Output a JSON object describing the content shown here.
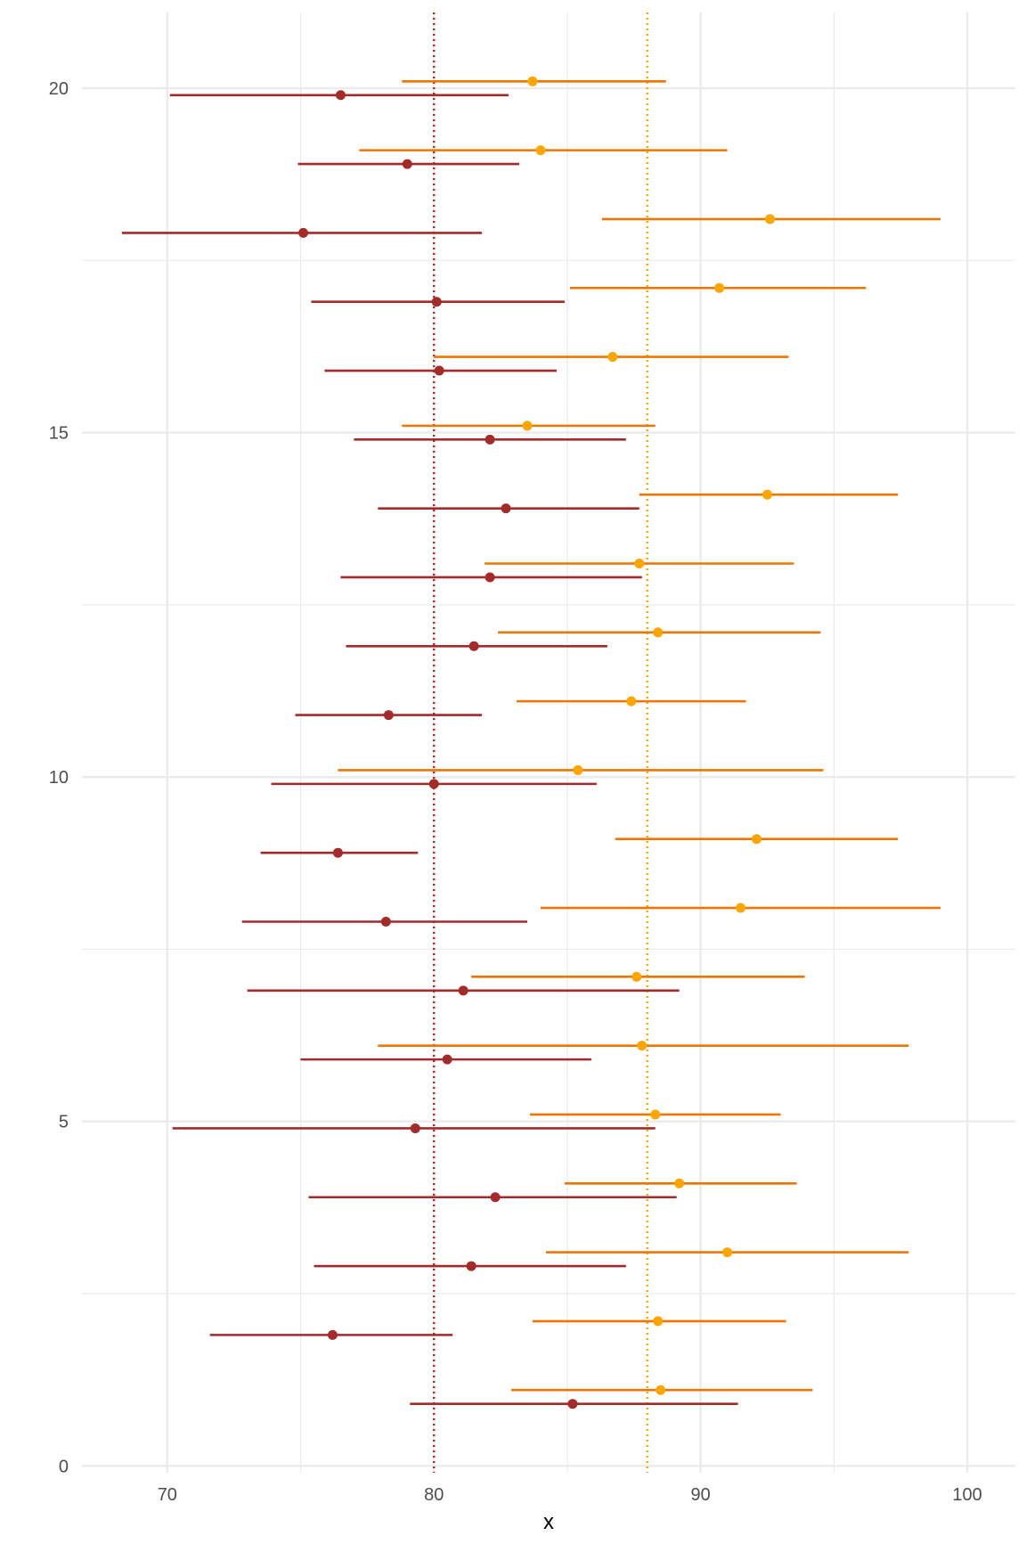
{
  "chart_data": {
    "type": "scatter",
    "title": "",
    "xlabel": "x",
    "ylabel": "",
    "xlim": [
      66.8,
      101.8
    ],
    "ylim": [
      -0.1,
      21.1
    ],
    "x_ticks": [
      70,
      80,
      90,
      100
    ],
    "x_tick_labels": [
      "70",
      "80",
      "90",
      "100"
    ],
    "y_ticks": [
      0,
      5,
      10,
      15,
      20
    ],
    "y_tick_labels": [
      "0",
      "5",
      "10",
      "15",
      "20"
    ],
    "grid": true,
    "legend": "none",
    "colors": {
      "group_a": "#a52a2a",
      "group_b": "#ffa500",
      "group_b_bar": "#ee7600",
      "grid": "#ebebeb"
    },
    "reference_lines": [
      {
        "x": 80.0,
        "color": "#a52a2a",
        "style": "dotted"
      },
      {
        "x": 88.0,
        "color": "#ffa500",
        "style": "dotted"
      }
    ],
    "series": [
      {
        "color": "#a52a2a",
        "bar_color": "#a52a2a",
        "y_offset": -0.1,
        "points": [
          {
            "y": 1,
            "x": 85.2,
            "low": 79.1,
            "high": 91.4
          },
          {
            "y": 2,
            "x": 76.2,
            "low": 71.6,
            "high": 80.7
          },
          {
            "y": 3,
            "x": 81.4,
            "low": 75.5,
            "high": 87.2
          },
          {
            "y": 4,
            "x": 82.3,
            "low": 75.3,
            "high": 89.1
          },
          {
            "y": 5,
            "x": 79.3,
            "low": 70.2,
            "high": 88.3
          },
          {
            "y": 6,
            "x": 80.5,
            "low": 75.0,
            "high": 85.9
          },
          {
            "y": 7,
            "x": 81.1,
            "low": 73.0,
            "high": 89.2
          },
          {
            "y": 8,
            "x": 78.2,
            "low": 72.8,
            "high": 83.5
          },
          {
            "y": 9,
            "x": 76.4,
            "low": 73.5,
            "high": 79.4
          },
          {
            "y": 10,
            "x": 80.0,
            "low": 73.9,
            "high": 86.1
          },
          {
            "y": 11,
            "x": 78.3,
            "low": 74.8,
            "high": 81.8
          },
          {
            "y": 12,
            "x": 81.5,
            "low": 76.7,
            "high": 86.5
          },
          {
            "y": 13,
            "x": 82.1,
            "low": 76.5,
            "high": 87.8
          },
          {
            "y": 14,
            "x": 82.7,
            "low": 77.9,
            "high": 87.7
          },
          {
            "y": 15,
            "x": 82.1,
            "low": 77.0,
            "high": 87.2
          },
          {
            "y": 16,
            "x": 80.2,
            "low": 75.9,
            "high": 84.6
          },
          {
            "y": 17,
            "x": 80.1,
            "low": 75.4,
            "high": 84.9
          },
          {
            "y": 18,
            "x": 75.1,
            "low": 68.3,
            "high": 81.8
          },
          {
            "y": 19,
            "x": 79.0,
            "low": 74.9,
            "high": 83.2
          },
          {
            "y": 20,
            "x": 76.5,
            "low": 70.1,
            "high": 82.8
          }
        ]
      },
      {
        "color": "#ffa500",
        "bar_color": "#ee7600",
        "y_offset": 0.1,
        "points": [
          {
            "y": 1,
            "x": 88.5,
            "low": 82.9,
            "high": 94.2
          },
          {
            "y": 2,
            "x": 88.4,
            "low": 83.7,
            "high": 93.2
          },
          {
            "y": 3,
            "x": 91.0,
            "low": 84.2,
            "high": 97.8
          },
          {
            "y": 4,
            "x": 89.2,
            "low": 84.9,
            "high": 93.6
          },
          {
            "y": 5,
            "x": 88.3,
            "low": 83.6,
            "high": 93.0
          },
          {
            "y": 6,
            "x": 87.8,
            "low": 77.9,
            "high": 97.8
          },
          {
            "y": 7,
            "x": 87.6,
            "low": 81.4,
            "high": 93.9
          },
          {
            "y": 8,
            "x": 91.5,
            "low": 84.0,
            "high": 99.0
          },
          {
            "y": 9,
            "x": 92.1,
            "low": 86.8,
            "high": 97.4
          },
          {
            "y": 10,
            "x": 85.4,
            "low": 76.4,
            "high": 94.6
          },
          {
            "y": 11,
            "x": 87.4,
            "low": 83.1,
            "high": 91.7
          },
          {
            "y": 12,
            "x": 88.4,
            "low": 82.4,
            "high": 94.5
          },
          {
            "y": 13,
            "x": 87.7,
            "low": 81.9,
            "high": 93.5
          },
          {
            "y": 14,
            "x": 92.5,
            "low": 87.7,
            "high": 97.4
          },
          {
            "y": 15,
            "x": 83.5,
            "low": 78.8,
            "high": 88.3
          },
          {
            "y": 16,
            "x": 86.7,
            "low": 80.0,
            "high": 93.3
          },
          {
            "y": 17,
            "x": 90.7,
            "low": 85.1,
            "high": 96.2
          },
          {
            "y": 18,
            "x": 92.6,
            "low": 86.3,
            "high": 99.0
          },
          {
            "y": 19,
            "x": 84.0,
            "low": 77.2,
            "high": 91.0
          },
          {
            "y": 20,
            "x": 83.7,
            "low": 78.8,
            "high": 88.7
          }
        ]
      }
    ]
  }
}
